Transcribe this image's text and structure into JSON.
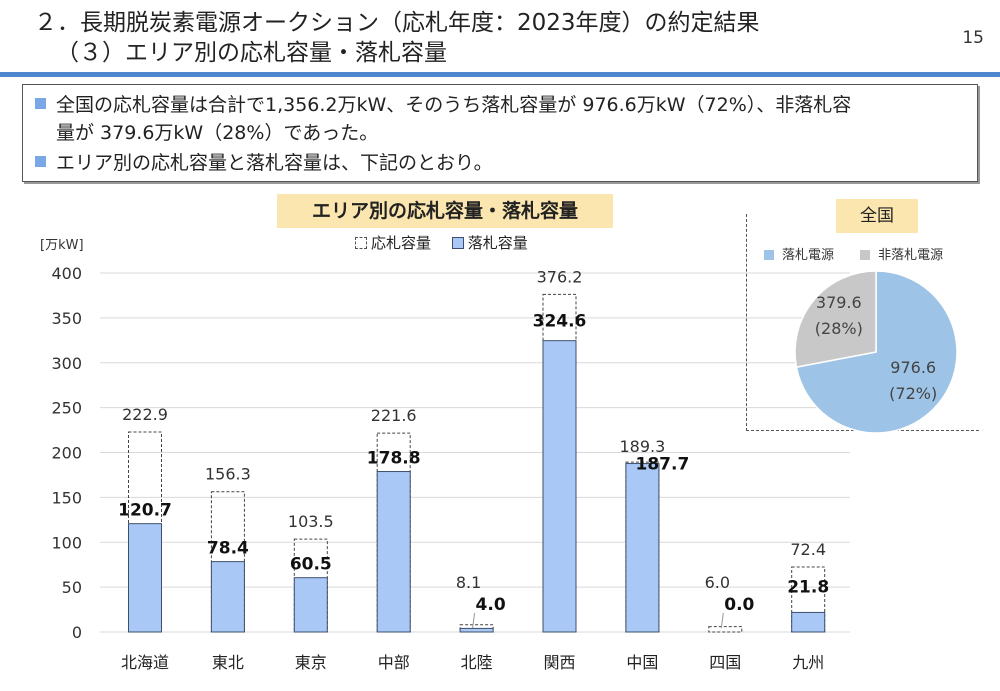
{
  "header": {
    "title_line1": "２．長期脱炭素電源オークション（応札年度：2023年度）の約定結果",
    "title_line2": "（３）エリア別の応札容量・落札容量",
    "page_number": "15",
    "accent_color": "#4f86d0"
  },
  "summary": {
    "bullets": [
      "全国の応札容量は合計で1,356.2万kW、そのうち落札容量が 976.6万kW（72%）、非落札容",
      "量が 379.6万kW（28%）であった。",
      "エリア別の応札容量と落札容量は、下記のとおり。"
    ]
  },
  "chart_data": [
    {
      "type": "bar",
      "title": "エリア別の応札容量・落札容量",
      "ylabel": "[万kW]",
      "xlabel": "",
      "ylim": [
        0,
        400
      ],
      "yticks": [
        0,
        50,
        100,
        150,
        200,
        250,
        300,
        350,
        400
      ],
      "grid": true,
      "legend_position": "top-center",
      "categories": [
        "北海道",
        "東北",
        "東京",
        "中部",
        "北陸",
        "関西",
        "中国",
        "四国",
        "九州"
      ],
      "series": [
        {
          "name": "応札容量",
          "style": "dashed-outline",
          "values": [
            222.9,
            156.3,
            103.5,
            221.6,
            8.1,
            376.2,
            189.3,
            6.0,
            72.4
          ]
        },
        {
          "name": "落札容量",
          "style": "filled",
          "color": "#a9c8f5",
          "values": [
            120.7,
            78.4,
            60.5,
            178.8,
            4.0,
            324.6,
            187.7,
            0.0,
            21.8
          ]
        }
      ]
    },
    {
      "type": "pie",
      "title": "全国",
      "legend_position": "top",
      "slices": [
        {
          "name": "落札電源",
          "value": 976.6,
          "percent": "72%",
          "color": "#9dc3e6"
        },
        {
          "name": "非落札電源",
          "value": 379.6,
          "percent": "28%",
          "color": "#c8c8c8"
        }
      ]
    }
  ]
}
